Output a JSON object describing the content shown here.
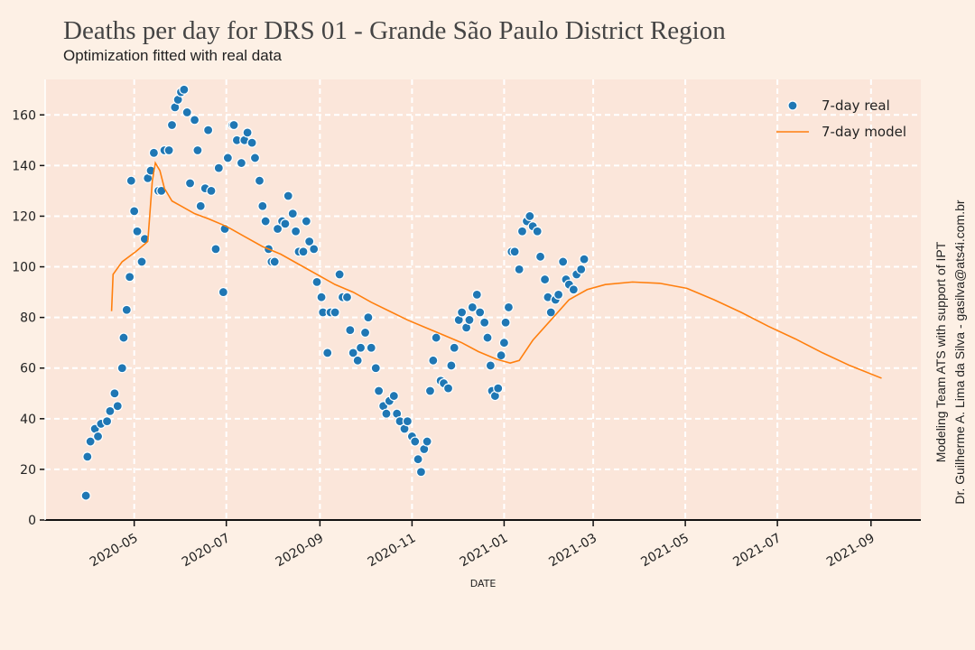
{
  "chart_data": {
    "type": "scatter",
    "title": "Deaths per day for DRS 01 - Grande São Paulo District Region",
    "subtitle": "Optimization fitted with real data",
    "xlabel": "DATE",
    "annotations": [
      "Modeling Team ATS with support of IPT",
      "Dr. Guilherme A. Lima da Silva - gasilva@ats4i.com.br"
    ],
    "xlim": [
      "2020-03-03",
      "2021-10-04"
    ],
    "xticks": [
      "2020-05",
      "2020-07",
      "2020-09",
      "2020-11",
      "2021-01",
      "2021-03",
      "2021-05",
      "2021-07",
      "2021-09"
    ],
    "ylim": [
      0,
      174
    ],
    "yticks": [
      0,
      20,
      40,
      60,
      80,
      100,
      120,
      140,
      160
    ],
    "grid": true,
    "legend": "upper right",
    "series": [
      {
        "name": "7-day real",
        "type": "scatter",
        "color": "#1f77b4",
        "x": [
          "2020-03-30",
          "2020-03-31",
          "2020-04-02",
          "2020-04-05",
          "2020-04-07",
          "2020-04-09",
          "2020-04-13",
          "2020-04-15",
          "2020-04-18",
          "2020-04-20",
          "2020-04-23",
          "2020-04-24",
          "2020-04-26",
          "2020-04-28",
          "2020-04-29",
          "2020-05-01",
          "2020-05-03",
          "2020-05-06",
          "2020-05-08",
          "2020-05-10",
          "2020-05-12",
          "2020-05-14",
          "2020-05-17",
          "2020-05-19",
          "2020-05-21",
          "2020-05-24",
          "2020-05-26",
          "2020-05-28",
          "2020-05-30",
          "2020-06-01",
          "2020-06-03",
          "2020-06-05",
          "2020-06-07",
          "2020-06-10",
          "2020-06-12",
          "2020-06-14",
          "2020-06-17",
          "2020-06-19",
          "2020-06-21",
          "2020-06-24",
          "2020-06-26",
          "2020-06-29",
          "2020-06-30",
          "2020-07-02",
          "2020-07-05",
          "2020-07-06",
          "2020-07-08",
          "2020-07-11",
          "2020-07-13",
          "2020-07-15",
          "2020-07-18",
          "2020-07-20",
          "2020-07-23",
          "2020-07-25",
          "2020-07-27",
          "2020-07-29",
          "2020-07-31",
          "2020-08-02",
          "2020-08-04",
          "2020-08-07",
          "2020-08-09",
          "2020-08-11",
          "2020-08-14",
          "2020-08-16",
          "2020-08-18",
          "2020-08-21",
          "2020-08-23",
          "2020-08-25",
          "2020-08-28",
          "2020-08-30",
          "2020-09-02",
          "2020-09-03",
          "2020-09-06",
          "2020-09-08",
          "2020-09-11",
          "2020-09-14",
          "2020-09-16",
          "2020-09-19",
          "2020-09-21",
          "2020-09-23",
          "2020-09-26",
          "2020-09-28",
          "2020-10-01",
          "2020-10-03",
          "2020-10-05",
          "2020-10-08",
          "2020-10-10",
          "2020-10-13",
          "2020-10-15",
          "2020-10-17",
          "2020-10-20",
          "2020-10-22",
          "2020-10-24",
          "2020-10-27",
          "2020-10-29",
          "2020-11-01",
          "2020-11-03",
          "2020-11-05",
          "2020-11-07",
          "2020-11-09",
          "2020-11-11",
          "2020-11-13",
          "2020-11-15",
          "2020-11-17",
          "2020-11-20",
          "2020-11-22",
          "2020-11-25",
          "2020-11-27",
          "2020-11-29",
          "2020-12-02",
          "2020-12-04",
          "2020-12-07",
          "2020-12-09",
          "2020-12-11",
          "2020-12-14",
          "2020-12-16",
          "2020-12-19",
          "2020-12-21",
          "2020-12-23",
          "2020-12-24",
          "2020-12-26",
          "2020-12-28",
          "2020-12-30",
          "2021-01-01",
          "2021-01-02",
          "2021-01-04",
          "2021-01-06",
          "2021-01-08",
          "2021-01-11",
          "2021-01-13",
          "2021-01-16",
          "2021-01-18",
          "2021-01-20",
          "2021-01-23",
          "2021-01-25",
          "2021-01-28",
          "2021-01-30",
          "2021-02-01",
          "2021-02-04",
          "2021-02-06",
          "2021-02-09",
          "2021-02-11",
          "2021-02-13",
          "2021-02-16",
          "2021-02-18",
          "2021-02-21",
          "2021-02-23"
        ],
        "values": [
          9.6,
          25,
          31,
          36,
          33,
          38,
          39,
          43,
          50,
          45,
          60,
          72,
          83,
          96,
          134,
          122,
          114,
          102,
          111,
          135,
          138,
          145,
          130,
          130,
          146,
          146,
          156,
          163,
          166,
          169,
          170,
          161,
          133,
          158,
          146,
          124,
          131,
          154,
          130,
          107,
          139,
          90,
          115,
          143,
          156,
          156,
          150,
          141,
          150,
          153,
          149,
          143,
          134,
          124,
          118,
          107,
          102,
          102,
          115,
          118,
          117,
          128,
          121,
          114,
          106,
          106,
          118,
          110,
          107,
          94,
          88,
          82,
          66,
          82,
          82,
          97,
          88,
          88,
          75,
          66,
          63,
          68,
          74,
          80,
          68,
          60,
          51,
          45,
          42,
          47,
          49,
          42,
          39,
          36,
          39,
          33,
          31,
          24,
          19,
          28,
          31,
          51,
          63,
          72,
          55,
          54,
          52,
          61,
          68,
          79,
          82,
          76,
          79,
          84,
          89,
          82,
          78,
          72,
          61,
          51,
          49,
          52,
          65,
          70,
          78,
          84,
          106,
          106,
          99,
          114,
          118,
          120,
          116,
          114,
          104,
          95,
          88,
          82,
          87,
          89,
          102,
          95,
          93,
          91,
          97,
          99,
          103
        ]
      },
      {
        "name": "7-day model",
        "type": "line",
        "color": "#ff7f0e",
        "x": [
          "2020-04-16",
          "2020-04-17",
          "2020-04-23",
          "2020-05-02",
          "2020-05-10",
          "2020-05-13",
          "2020-05-15",
          "2020-05-18",
          "2020-05-21",
          "2020-05-26",
          "2020-06-01",
          "2020-06-10",
          "2020-06-19",
          "2020-07-01",
          "2020-07-13",
          "2020-07-25",
          "2020-08-06",
          "2020-08-18",
          "2020-08-30",
          "2020-09-11",
          "2020-09-23",
          "2020-10-05",
          "2020-10-17",
          "2020-10-29",
          "2020-11-10",
          "2020-11-22",
          "2020-12-04",
          "2020-12-15",
          "2020-12-27",
          "2021-01-05",
          "2021-01-11",
          "2021-01-20",
          "2021-02-01",
          "2021-02-13",
          "2021-02-25",
          "2021-03-09",
          "2021-03-27",
          "2021-04-14",
          "2021-05-02",
          "2021-05-20",
          "2021-06-07",
          "2021-06-25",
          "2021-07-13",
          "2021-07-31",
          "2021-08-18",
          "2021-09-08"
        ],
        "values": [
          82.5,
          97,
          102,
          106,
          110,
          134,
          141,
          138,
          131,
          126,
          124,
          121,
          119,
          116,
          112,
          108,
          105,
          101,
          97,
          93,
          90,
          86,
          82.5,
          79,
          76,
          73,
          70,
          66.5,
          63.5,
          62,
          63,
          71,
          79,
          87,
          91,
          93,
          94,
          93.5,
          91.5,
          87,
          82,
          76.5,
          71.5,
          66,
          61,
          56
        ]
      }
    ]
  }
}
